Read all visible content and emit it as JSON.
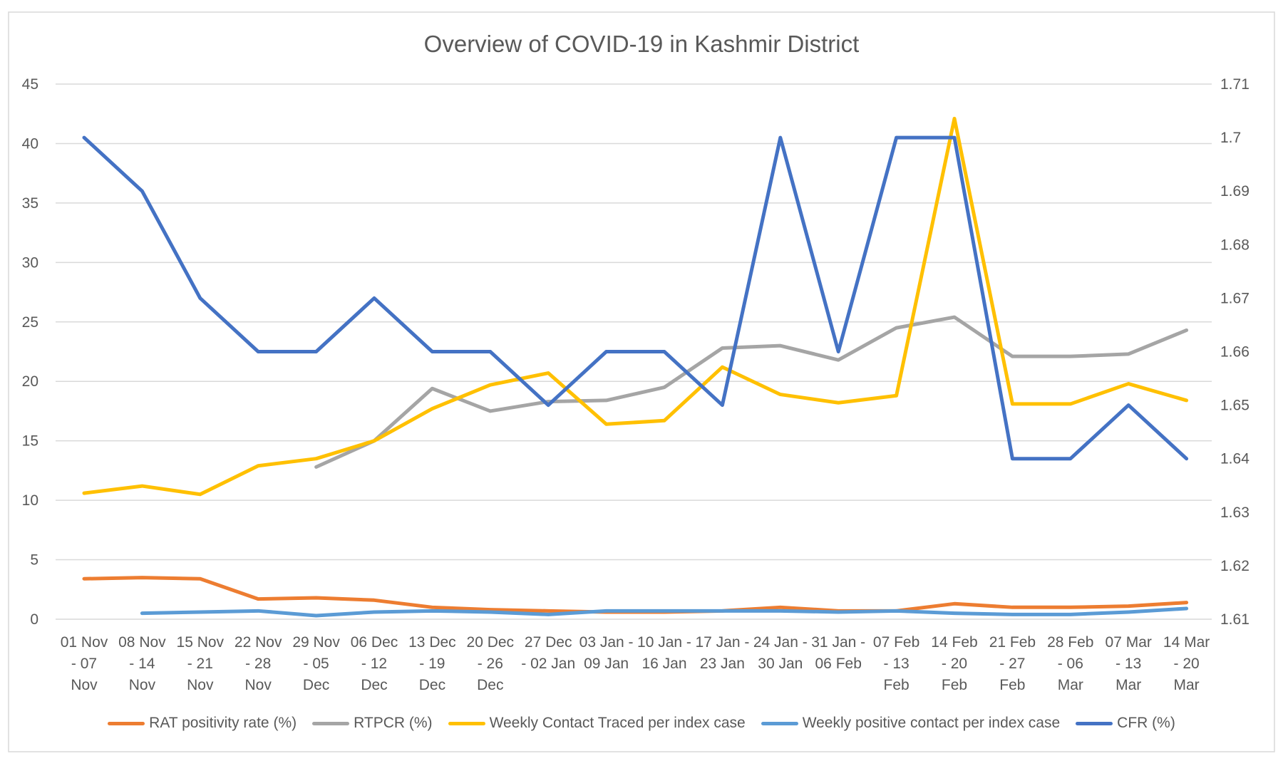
{
  "chart_data": {
    "type": "line",
    "title": "Overview of COVID-19 in Kashmir District",
    "categories": [
      [
        "01 Nov",
        "- 07",
        "Nov"
      ],
      [
        "08 Nov",
        "- 14",
        "Nov"
      ],
      [
        "15 Nov",
        "- 21",
        "Nov"
      ],
      [
        "22 Nov",
        "- 28",
        "Nov"
      ],
      [
        "29 Nov",
        "- 05",
        "Dec"
      ],
      [
        "06 Dec",
        "- 12",
        "Dec"
      ],
      [
        "13 Dec",
        "- 19",
        "Dec"
      ],
      [
        "20 Dec",
        "- 26",
        "Dec"
      ],
      [
        "27 Dec",
        "- 02 Jan"
      ],
      [
        "03 Jan -",
        "09 Jan"
      ],
      [
        "10 Jan -",
        "16 Jan"
      ],
      [
        "17 Jan -",
        "23 Jan"
      ],
      [
        "24 Jan -",
        "30 Jan"
      ],
      [
        "31 Jan -",
        "06 Feb"
      ],
      [
        "07 Feb",
        "- 13",
        "Feb"
      ],
      [
        "14 Feb",
        "- 20",
        "Feb"
      ],
      [
        "21 Feb",
        "- 27",
        "Feb"
      ],
      [
        "28 Feb",
        "- 06",
        "Mar"
      ],
      [
        "07 Mar",
        "- 13",
        "Mar"
      ],
      [
        "14 Mar",
        "- 20",
        "Mar"
      ]
    ],
    "y_left": {
      "min": 0,
      "max": 45,
      "step": 5,
      "ticks": [
        "0",
        "5",
        "10",
        "15",
        "20",
        "25",
        "30",
        "35",
        "40",
        "45"
      ]
    },
    "y_right": {
      "min": 1.61,
      "max": 1.71,
      "step": 0.01,
      "ticks": [
        "1.61",
        "1.62",
        "1.63",
        "1.64",
        "1.65",
        "1.66",
        "1.67",
        "1.68",
        "1.69",
        "1.7",
        "1.71"
      ]
    },
    "grid": true,
    "legend_position": "bottom",
    "series": [
      {
        "name": "RAT positivity rate (%)",
        "color": "#ED7D31",
        "axis": "left",
        "values": [
          3.4,
          3.5,
          3.4,
          1.7,
          1.8,
          1.6,
          1.0,
          0.8,
          0.7,
          0.6,
          0.6,
          0.7,
          1.0,
          0.7,
          0.7,
          1.3,
          1.0,
          1.0,
          1.1,
          1.4
        ]
      },
      {
        "name": "RTPCR (%)",
        "color": "#A5A5A5",
        "axis": "left",
        "values": [
          null,
          null,
          null,
          null,
          12.8,
          15.0,
          19.4,
          17.5,
          18.3,
          18.4,
          19.5,
          22.8,
          23.0,
          21.8,
          24.5,
          25.4,
          22.1,
          22.1,
          22.3,
          24.3
        ]
      },
      {
        "name": "Weekly Contact Traced per index case",
        "color": "#FFC000",
        "axis": "left",
        "values": [
          10.6,
          11.2,
          10.5,
          12.9,
          13.5,
          15.0,
          17.7,
          19.7,
          20.7,
          16.4,
          16.7,
          21.2,
          18.9,
          18.2,
          18.8,
          42.1,
          18.1,
          18.1,
          19.8,
          18.4
        ]
      },
      {
        "name": "Weekly positive contact per index case",
        "color": "#5B9BD5",
        "axis": "left",
        "values": [
          null,
          0.5,
          0.6,
          0.7,
          0.3,
          0.6,
          0.7,
          0.6,
          0.4,
          0.7,
          0.7,
          0.7,
          0.7,
          0.6,
          0.7,
          0.5,
          0.4,
          0.4,
          0.6,
          0.9
        ]
      },
      {
        "name": "CFR (%)",
        "color": "#4472C4",
        "axis": "right",
        "values": [
          1.7,
          1.69,
          1.67,
          1.66,
          1.66,
          1.67,
          1.66,
          1.66,
          1.65,
          1.66,
          1.66,
          1.65,
          1.7,
          1.66,
          1.7,
          1.7,
          1.64,
          1.64,
          1.65,
          1.64
        ]
      }
    ]
  }
}
